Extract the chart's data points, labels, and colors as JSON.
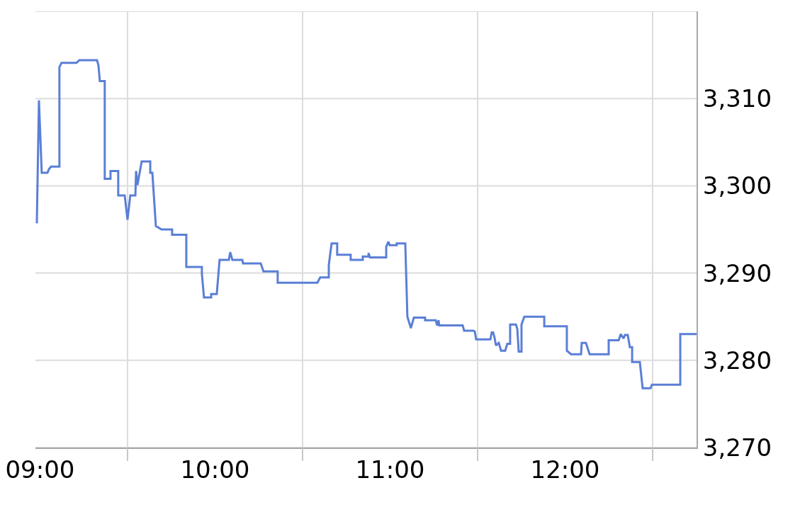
{
  "chart_data": {
    "type": "line",
    "x": [
      8.982,
      8.994,
      9.01,
      9.043,
      9.051,
      9.063,
      9.111,
      9.111,
      9.123,
      9.209,
      9.225,
      9.326,
      9.334,
      9.342,
      9.37,
      9.37,
      9.403,
      9.403,
      9.447,
      9.447,
      9.484,
      9.5,
      9.516,
      9.545,
      9.549,
      9.557,
      9.581,
      9.63,
      9.63,
      9.642,
      9.662,
      9.694,
      9.755,
      9.755,
      9.836,
      9.836,
      9.925,
      9.925,
      9.937,
      9.978,
      9.978,
      10.01,
      10.026,
      10.079,
      10.087,
      10.099,
      10.156,
      10.16,
      10.261,
      10.277,
      10.358,
      10.358,
      10.585,
      10.601,
      10.65,
      10.65,
      10.666,
      10.698,
      10.698,
      10.775,
      10.775,
      10.844,
      10.844,
      10.877,
      10.877,
      10.885,
      10.978,
      10.978,
      10.99,
      10.998,
      11.038,
      11.038,
      11.087,
      11.099,
      11.119,
      11.136,
      11.2,
      11.2,
      11.261,
      11.269,
      11.277,
      11.281,
      11.322,
      11.415,
      11.423,
      11.476,
      11.484,
      11.492,
      11.573,
      11.581,
      11.589,
      11.597,
      11.605,
      11.621,
      11.634,
      11.658,
      11.67,
      11.686,
      11.686,
      11.719,
      11.727,
      11.735,
      11.751,
      11.751,
      11.767,
      11.881,
      11.881,
      12.01,
      12.01,
      12.034,
      12.091,
      12.095,
      12.119,
      12.14,
      12.249,
      12.249,
      12.306,
      12.318,
      12.334,
      12.342,
      12.358,
      12.37,
      12.383,
      12.383,
      12.427,
      12.443,
      12.488,
      12.496,
      12.658,
      12.658,
      12.751
    ],
    "series": [
      {
        "color": "#5a7fd6",
        "values": [
          3295.7,
          3309.8,
          3301.5,
          3301.5,
          3301.9,
          3302.2,
          3302.2,
          3313.6,
          3314.1,
          3314.1,
          3314.4,
          3314.4,
          3313.8,
          3312.0,
          3312.0,
          3300.8,
          3300.8,
          3301.7,
          3301.7,
          3298.9,
          3298.9,
          3296.1,
          3298.9,
          3298.9,
          3301.7,
          3300.1,
          3302.8,
          3302.8,
          3301.5,
          3301.5,
          3295.4,
          3295.0,
          3295.0,
          3294.4,
          3294.4,
          3290.7,
          3290.7,
          3289.9,
          3287.2,
          3287.2,
          3287.6,
          3287.6,
          3291.5,
          3291.5,
          3292.4,
          3291.5,
          3291.5,
          3291.1,
          3291.1,
          3290.2,
          3290.2,
          3288.9,
          3288.9,
          3289.5,
          3289.5,
          3290.9,
          3293.4,
          3293.4,
          3292.1,
          3292.1,
          3291.5,
          3291.5,
          3291.9,
          3291.9,
          3292.3,
          3291.8,
          3291.8,
          3293.0,
          3293.6,
          3293.2,
          3293.2,
          3293.4,
          3293.4,
          3285.0,
          3283.7,
          3284.9,
          3284.9,
          3284.6,
          3284.6,
          3284.0,
          3284.6,
          3284.0,
          3284.0,
          3284.0,
          3283.4,
          3283.4,
          3283.3,
          3282.4,
          3282.4,
          3283.2,
          3283.2,
          3282.6,
          3281.7,
          3282.0,
          3281.1,
          3281.1,
          3281.9,
          3281.9,
          3284.1,
          3284.1,
          3283.6,
          3281.0,
          3281.0,
          3284.1,
          3285.0,
          3285.0,
          3283.9,
          3283.9,
          3281.1,
          3280.7,
          3280.7,
          3282.0,
          3282.0,
          3280.7,
          3280.7,
          3282.3,
          3282.3,
          3283.0,
          3282.5,
          3282.9,
          3282.9,
          3281.5,
          3281.5,
          3279.8,
          3279.8,
          3276.8,
          3276.8,
          3277.2,
          3277.2,
          3283.0,
          3283.0
        ]
      }
    ],
    "xlim": [
      8.974,
      12.751
    ],
    "xticks": [
      {
        "value": 9,
        "label": "09:00"
      },
      {
        "value": 9.5,
        "label": null
      },
      {
        "value": 10,
        "label": "10:00"
      },
      {
        "value": 10.5,
        "label": null
      },
      {
        "value": 11,
        "label": "11:00"
      },
      {
        "value": 11.5,
        "label": null
      },
      {
        "value": 12,
        "label": "12:00"
      },
      {
        "value": 12.5,
        "label": null
      }
    ],
    "ylim": [
      3270,
      3320
    ],
    "yticks": [
      {
        "value": 3270,
        "label": "3,270"
      },
      {
        "value": 3280,
        "label": "3,280"
      },
      {
        "value": 3290,
        "label": "3,290"
      },
      {
        "value": 3300,
        "label": "3,300"
      },
      {
        "value": 3310,
        "label": "3,310"
      },
      {
        "value": 3320,
        "label": null
      }
    ],
    "grid": true,
    "marker": "none",
    "line_style": "solid"
  }
}
